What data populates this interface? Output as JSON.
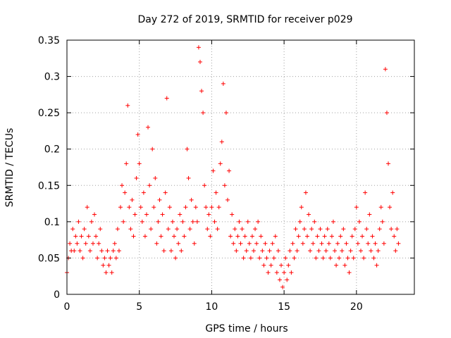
{
  "chart_data": {
    "type": "scatter",
    "title": "Day 272 of 2019, SRMTID for receiver p029",
    "xlabel": "GPS time / hours",
    "ylabel": "SRMTID / TECUs",
    "xlim": [
      0,
      24
    ],
    "ylim": [
      0,
      0.35
    ],
    "x_ticks": [
      0,
      5,
      10,
      15,
      20
    ],
    "x_tick_labels": [
      "0",
      "5",
      "10",
      "15",
      "20"
    ],
    "y_ticks": [
      0,
      0.05,
      0.1,
      0.15,
      0.2,
      0.25,
      0.3,
      0.35
    ],
    "y_tick_labels": [
      "0",
      "0.05",
      "0.1",
      "0.15",
      "0.2",
      "0.25",
      "0.3",
      "0.35"
    ],
    "grid": true,
    "marker": "+",
    "color": "#ff0000",
    "series": [
      {
        "name": "SRMTID",
        "points": [
          [
            0.0,
            0.03
          ],
          [
            0.1,
            0.05
          ],
          [
            0.2,
            0.07
          ],
          [
            0.3,
            0.06
          ],
          [
            0.4,
            0.09
          ],
          [
            0.5,
            0.06
          ],
          [
            0.6,
            0.08
          ],
          [
            0.7,
            0.07
          ],
          [
            0.8,
            0.1
          ],
          [
            0.9,
            0.06
          ],
          [
            1.0,
            0.08
          ],
          [
            1.1,
            0.05
          ],
          [
            1.2,
            0.09
          ],
          [
            1.3,
            0.07
          ],
          [
            1.4,
            0.12
          ],
          [
            1.5,
            0.08
          ],
          [
            1.6,
            0.06
          ],
          [
            1.7,
            0.1
          ],
          [
            1.8,
            0.07
          ],
          [
            1.9,
            0.11
          ],
          [
            2.0,
            0.08
          ],
          [
            2.1,
            0.05
          ],
          [
            2.2,
            0.07
          ],
          [
            2.3,
            0.09
          ],
          [
            2.4,
            0.06
          ],
          [
            2.5,
            0.04
          ],
          [
            2.6,
            0.05
          ],
          [
            2.7,
            0.03
          ],
          [
            2.8,
            0.06
          ],
          [
            2.9,
            0.04
          ],
          [
            3.0,
            0.05
          ],
          [
            3.1,
            0.03
          ],
          [
            3.2,
            0.06
          ],
          [
            3.3,
            0.07
          ],
          [
            3.4,
            0.05
          ],
          [
            3.5,
            0.09
          ],
          [
            3.6,
            0.06
          ],
          [
            3.7,
            0.12
          ],
          [
            3.8,
            0.15
          ],
          [
            3.9,
            0.1
          ],
          [
            4.0,
            0.14
          ],
          [
            4.1,
            0.18
          ],
          [
            4.2,
            0.26
          ],
          [
            4.3,
            0.12
          ],
          [
            4.4,
            0.09
          ],
          [
            4.5,
            0.13
          ],
          [
            4.6,
            0.08
          ],
          [
            4.7,
            0.11
          ],
          [
            4.8,
            0.16
          ],
          [
            4.9,
            0.22
          ],
          [
            5.0,
            0.18
          ],
          [
            5.1,
            0.12
          ],
          [
            5.2,
            0.1
          ],
          [
            5.3,
            0.14
          ],
          [
            5.4,
            0.08
          ],
          [
            5.5,
            0.11
          ],
          [
            5.6,
            0.23
          ],
          [
            5.7,
            0.15
          ],
          [
            5.8,
            0.09
          ],
          [
            5.9,
            0.2
          ],
          [
            6.0,
            0.12
          ],
          [
            6.1,
            0.16
          ],
          [
            6.2,
            0.07
          ],
          [
            6.3,
            0.1
          ],
          [
            6.4,
            0.13
          ],
          [
            6.5,
            0.08
          ],
          [
            6.6,
            0.11
          ],
          [
            6.7,
            0.06
          ],
          [
            6.8,
            0.14
          ],
          [
            6.9,
            0.27
          ],
          [
            7.0,
            0.09
          ],
          [
            7.1,
            0.12
          ],
          [
            7.2,
            0.06
          ],
          [
            7.3,
            0.1
          ],
          [
            7.4,
            0.08
          ],
          [
            7.5,
            0.05
          ],
          [
            7.6,
            0.09
          ],
          [
            7.7,
            0.07
          ],
          [
            7.8,
            0.11
          ],
          [
            7.9,
            0.06
          ],
          [
            8.0,
            0.1
          ],
          [
            8.1,
            0.08
          ],
          [
            8.2,
            0.12
          ],
          [
            8.3,
            0.2
          ],
          [
            8.4,
            0.16
          ],
          [
            8.5,
            0.09
          ],
          [
            8.6,
            0.13
          ],
          [
            8.7,
            0.1
          ],
          [
            8.8,
            0.07
          ],
          [
            8.9,
            0.12
          ],
          [
            9.0,
            0.1
          ],
          [
            9.1,
            0.34
          ],
          [
            9.2,
            0.32
          ],
          [
            9.3,
            0.28
          ],
          [
            9.4,
            0.25
          ],
          [
            9.5,
            0.15
          ],
          [
            9.6,
            0.12
          ],
          [
            9.7,
            0.09
          ],
          [
            9.8,
            0.11
          ],
          [
            9.9,
            0.08
          ],
          [
            10.0,
            0.12
          ],
          [
            10.1,
            0.17
          ],
          [
            10.2,
            0.1
          ],
          [
            10.3,
            0.14
          ],
          [
            10.4,
            0.09
          ],
          [
            10.5,
            0.12
          ],
          [
            10.6,
            0.18
          ],
          [
            10.7,
            0.21
          ],
          [
            10.8,
            0.29
          ],
          [
            10.9,
            0.15
          ],
          [
            11.0,
            0.25
          ],
          [
            11.1,
            0.13
          ],
          [
            11.2,
            0.17
          ],
          [
            11.3,
            0.08
          ],
          [
            11.4,
            0.11
          ],
          [
            11.5,
            0.07
          ],
          [
            11.6,
            0.09
          ],
          [
            11.7,
            0.06
          ],
          [
            11.8,
            0.08
          ],
          [
            11.9,
            0.1
          ],
          [
            12.0,
            0.07
          ],
          [
            12.1,
            0.09
          ],
          [
            12.2,
            0.05
          ],
          [
            12.3,
            0.08
          ],
          [
            12.4,
            0.06
          ],
          [
            12.5,
            0.1
          ],
          [
            12.6,
            0.07
          ],
          [
            12.7,
            0.05
          ],
          [
            12.8,
            0.08
          ],
          [
            12.9,
            0.06
          ],
          [
            13.0,
            0.09
          ],
          [
            13.1,
            0.07
          ],
          [
            13.2,
            0.1
          ],
          [
            13.3,
            0.05
          ],
          [
            13.4,
            0.08
          ],
          [
            13.5,
            0.06
          ],
          [
            13.6,
            0.04
          ],
          [
            13.7,
            0.07
          ],
          [
            13.8,
            0.05
          ],
          [
            13.9,
            0.03
          ],
          [
            14.0,
            0.06
          ],
          [
            14.1,
            0.04
          ],
          [
            14.2,
            0.07
          ],
          [
            14.3,
            0.05
          ],
          [
            14.4,
            0.08
          ],
          [
            14.5,
            0.03
          ],
          [
            14.6,
            0.06
          ],
          [
            14.7,
            0.02
          ],
          [
            14.8,
            0.04
          ],
          [
            14.9,
            0.01
          ],
          [
            15.0,
            0.03
          ],
          [
            15.1,
            0.05
          ],
          [
            15.2,
            0.02
          ],
          [
            15.3,
            0.04
          ],
          [
            15.4,
            0.06
          ],
          [
            15.5,
            0.03
          ],
          [
            15.6,
            0.07
          ],
          [
            15.7,
            0.05
          ],
          [
            15.8,
            0.09
          ],
          [
            15.9,
            0.06
          ],
          [
            16.0,
            0.08
          ],
          [
            16.1,
            0.1
          ],
          [
            16.2,
            0.12
          ],
          [
            16.3,
            0.07
          ],
          [
            16.4,
            0.09
          ],
          [
            16.5,
            0.14
          ],
          [
            16.6,
            0.08
          ],
          [
            16.7,
            0.11
          ],
          [
            16.8,
            0.06
          ],
          [
            16.9,
            0.09
          ],
          [
            17.0,
            0.07
          ],
          [
            17.1,
            0.1
          ],
          [
            17.2,
            0.05
          ],
          [
            17.3,
            0.08
          ],
          [
            17.4,
            0.06
          ],
          [
            17.5,
            0.09
          ],
          [
            17.6,
            0.07
          ],
          [
            17.7,
            0.05
          ],
          [
            17.8,
            0.08
          ],
          [
            17.9,
            0.06
          ],
          [
            18.0,
            0.09
          ],
          [
            18.1,
            0.07
          ],
          [
            18.2,
            0.05
          ],
          [
            18.3,
            0.08
          ],
          [
            18.4,
            0.1
          ],
          [
            18.5,
            0.06
          ],
          [
            18.6,
            0.04
          ],
          [
            18.7,
            0.07
          ],
          [
            18.8,
            0.05
          ],
          [
            18.9,
            0.08
          ],
          [
            19.0,
            0.06
          ],
          [
            19.1,
            0.09
          ],
          [
            19.2,
            0.04
          ],
          [
            19.3,
            0.07
          ],
          [
            19.4,
            0.05
          ],
          [
            19.5,
            0.03
          ],
          [
            19.6,
            0.06
          ],
          [
            19.7,
            0.08
          ],
          [
            19.8,
            0.05
          ],
          [
            19.9,
            0.09
          ],
          [
            20.0,
            0.12
          ],
          [
            20.1,
            0.07
          ],
          [
            20.2,
            0.1
          ],
          [
            20.3,
            0.06
          ],
          [
            20.4,
            0.08
          ],
          [
            20.5,
            0.05
          ],
          [
            20.6,
            0.14
          ],
          [
            20.7,
            0.09
          ],
          [
            20.8,
            0.07
          ],
          [
            20.9,
            0.11
          ],
          [
            21.0,
            0.06
          ],
          [
            21.1,
            0.08
          ],
          [
            21.2,
            0.05
          ],
          [
            21.3,
            0.07
          ],
          [
            21.4,
            0.04
          ],
          [
            21.5,
            0.06
          ],
          [
            21.6,
            0.09
          ],
          [
            21.7,
            0.12
          ],
          [
            21.8,
            0.1
          ],
          [
            21.9,
            0.07
          ],
          [
            22.0,
            0.31
          ],
          [
            22.1,
            0.25
          ],
          [
            22.2,
            0.18
          ],
          [
            22.3,
            0.12
          ],
          [
            22.4,
            0.09
          ],
          [
            22.5,
            0.14
          ],
          [
            22.6,
            0.08
          ],
          [
            22.7,
            0.06
          ],
          [
            22.8,
            0.09
          ],
          [
            22.9,
            0.07
          ]
        ]
      }
    ]
  }
}
